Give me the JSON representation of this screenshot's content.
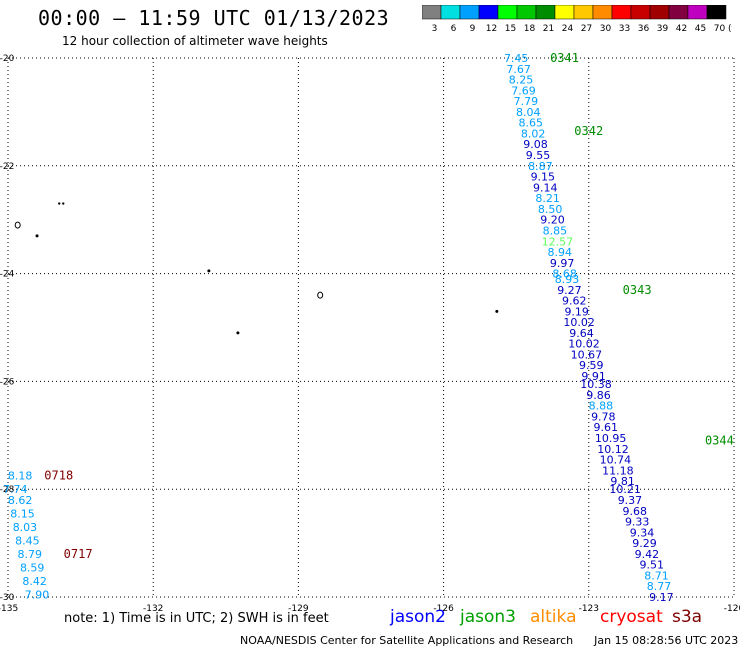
{
  "header": {
    "title": "00:00 – 11:59 UTC 01/13/2023",
    "subtitle": "12 hour collection of altimeter wave heights"
  },
  "color_scale": {
    "unit": "(ft)",
    "bins": [
      {
        "label": "3",
        "color": "#808080"
      },
      {
        "label": "6",
        "color": "#00e0e0"
      },
      {
        "label": "9",
        "color": "#00a0ff"
      },
      {
        "label": "12",
        "color": "#0000ff"
      },
      {
        "label": "15",
        "color": "#00ff00"
      },
      {
        "label": "18",
        "color": "#00c800"
      },
      {
        "label": "21",
        "color": "#008c00"
      },
      {
        "label": "24",
        "color": "#ffff00"
      },
      {
        "label": "27",
        "color": "#ffc800"
      },
      {
        "label": "30",
        "color": "#ff8c00"
      },
      {
        "label": "33",
        "color": "#ff0000"
      },
      {
        "label": "36",
        "color": "#c80000"
      },
      {
        "label": "39",
        "color": "#a00000"
      },
      {
        "label": "42",
        "color": "#800040"
      },
      {
        "label": "45",
        "color": "#c000c0"
      },
      {
        "label": "70",
        "color": "#000000"
      }
    ]
  },
  "map": {
    "lon_ticks": [
      "-135",
      "-132",
      "-129",
      "-126",
      "-123",
      "-120"
    ],
    "lat_ticks": [
      "-20",
      "-22",
      "-24",
      "-26",
      "-28",
      "-30"
    ],
    "pass_labels": [
      {
        "text": "0341",
        "lon": -123.8,
        "lat": -20.0,
        "color": "#008c00"
      },
      {
        "text": "0342",
        "lon": -123.3,
        "lat": -21.35,
        "color": "#008c00"
      },
      {
        "text": "0343",
        "lon": -122.3,
        "lat": -24.3,
        "color": "#008c00"
      },
      {
        "text": "0344",
        "lon": -120.6,
        "lat": -27.1,
        "color": "#008c00"
      },
      {
        "text": "0718",
        "lon": -134.25,
        "lat": -27.75,
        "color": "#800000"
      },
      {
        "text": "0717",
        "lon": -133.85,
        "lat": -29.2,
        "color": "#800000"
      }
    ],
    "tracks": [
      {
        "name": "jason3 pass",
        "points": [
          {
            "v": "7.45",
            "lon": -124.5,
            "lat": -20.0,
            "c": "#00a0ff"
          },
          {
            "v": "7.67",
            "lon": -124.45,
            "lat": -20.2,
            "c": "#00a0ff"
          },
          {
            "v": "8.25",
            "lon": -124.4,
            "lat": -20.4,
            "c": "#00a0ff"
          },
          {
            "v": "7.69",
            "lon": -124.35,
            "lat": -20.6,
            "c": "#00a0ff"
          },
          {
            "v": "7.79",
            "lon": -124.3,
            "lat": -20.8,
            "c": "#00a0ff"
          },
          {
            "v": "8.04",
            "lon": -124.25,
            "lat": -21.0,
            "c": "#00a0ff"
          },
          {
            "v": "8.65",
            "lon": -124.2,
            "lat": -21.2,
            "c": "#00a0ff"
          },
          {
            "v": "8.02",
            "lon": -124.15,
            "lat": -21.4,
            "c": "#00a0ff"
          },
          {
            "v": "9.08",
            "lon": -124.1,
            "lat": -21.6,
            "c": "#0000c0"
          },
          {
            "v": "9.55",
            "lon": -124.05,
            "lat": -21.8,
            "c": "#0000c0"
          },
          {
            "v": "8.87",
            "lon": -124.0,
            "lat": -22.0,
            "c": "#00a0ff"
          },
          {
            "v": "9.15",
            "lon": -123.95,
            "lat": -22.2,
            "c": "#0000c0"
          },
          {
            "v": "9.14",
            "lon": -123.9,
            "lat": -22.4,
            "c": "#0000c0"
          },
          {
            "v": "8.21",
            "lon": -123.85,
            "lat": -22.6,
            "c": "#00a0ff"
          },
          {
            "v": "8.50",
            "lon": -123.8,
            "lat": -22.8,
            "c": "#00a0ff"
          },
          {
            "v": "9.20",
            "lon": -123.75,
            "lat": -23.0,
            "c": "#0000c0"
          },
          {
            "v": "8.85",
            "lon": -123.7,
            "lat": -23.2,
            "c": "#00a0ff"
          },
          {
            "v": "12.57",
            "lon": -123.65,
            "lat": -23.4,
            "c": "#60ff60"
          },
          {
            "v": "8.94",
            "lon": -123.6,
            "lat": -23.6,
            "c": "#00a0ff"
          },
          {
            "v": "9.97",
            "lon": -123.55,
            "lat": -23.8,
            "c": "#0000c0"
          },
          {
            "v": "8.68",
            "lon": -123.5,
            "lat": -24.0,
            "c": "#00a0ff"
          },
          {
            "v": "8.93",
            "lon": -123.45,
            "lat": -24.1,
            "c": "#00a0ff"
          },
          {
            "v": "9.27",
            "lon": -123.4,
            "lat": -24.3,
            "c": "#0000c0"
          },
          {
            "v": "9.62",
            "lon": -123.3,
            "lat": -24.5,
            "c": "#0000c0"
          },
          {
            "v": "9.19",
            "lon": -123.25,
            "lat": -24.7,
            "c": "#0000c0"
          },
          {
            "v": "10.02",
            "lon": -123.2,
            "lat": -24.9,
            "c": "#0000c0"
          },
          {
            "v": "9.64",
            "lon": -123.15,
            "lat": -25.1,
            "c": "#0000c0"
          },
          {
            "v": "10.02",
            "lon": -123.1,
            "lat": -25.3,
            "c": "#0000c0"
          },
          {
            "v": "10.67",
            "lon": -123.05,
            "lat": -25.5,
            "c": "#0000c0"
          },
          {
            "v": "9.59",
            "lon": -122.95,
            "lat": -25.7,
            "c": "#0000c0"
          },
          {
            "v": "9.91",
            "lon": -122.9,
            "lat": -25.9,
            "c": "#0000c0"
          },
          {
            "v": "10.38",
            "lon": -122.85,
            "lat": -26.05,
            "c": "#0000c0"
          },
          {
            "v": "9.86",
            "lon": -122.8,
            "lat": -26.25,
            "c": "#0000c0"
          },
          {
            "v": "8.88",
            "lon": -122.75,
            "lat": -26.45,
            "c": "#00a0ff"
          },
          {
            "v": "9.78",
            "lon": -122.7,
            "lat": -26.65,
            "c": "#0000c0"
          },
          {
            "v": "9.61",
            "lon": -122.65,
            "lat": -26.85,
            "c": "#0000c0"
          },
          {
            "v": "10.95",
            "lon": -122.55,
            "lat": -27.05,
            "c": "#0000c0"
          },
          {
            "v": "10.12",
            "lon": -122.5,
            "lat": -27.25,
            "c": "#0000c0"
          },
          {
            "v": "10.74",
            "lon": -122.45,
            "lat": -27.45,
            "c": "#0000c0"
          },
          {
            "v": "11.18",
            "lon": -122.4,
            "lat": -27.65,
            "c": "#0000c0"
          },
          {
            "v": "9.81",
            "lon": -122.3,
            "lat": -27.85,
            "c": "#0000c0"
          },
          {
            "v": "10.21",
            "lon": -122.25,
            "lat": -28.0,
            "c": "#0000c0"
          },
          {
            "v": "9.37",
            "lon": -122.15,
            "lat": -28.2,
            "c": "#0000c0"
          },
          {
            "v": "9.68",
            "lon": -122.05,
            "lat": -28.4,
            "c": "#0000c0"
          },
          {
            "v": "9.33",
            "lon": -122.0,
            "lat": -28.6,
            "c": "#0000c0"
          },
          {
            "v": "9.34",
            "lon": -121.9,
            "lat": -28.8,
            "c": "#0000c0"
          },
          {
            "v": "9.29",
            "lon": -121.85,
            "lat": -29.0,
            "c": "#0000c0"
          },
          {
            "v": "9.42",
            "lon": -121.8,
            "lat": -29.2,
            "c": "#0000c0"
          },
          {
            "v": "9.51",
            "lon": -121.7,
            "lat": -29.4,
            "c": "#0000c0"
          },
          {
            "v": "8.71",
            "lon": -121.6,
            "lat": -29.6,
            "c": "#00a0ff"
          },
          {
            "v": "8.77",
            "lon": -121.55,
            "lat": -29.8,
            "c": "#00a0ff"
          },
          {
            "v": "9.17",
            "lon": -121.5,
            "lat": -30.0,
            "c": "#0000c0"
          }
        ]
      },
      {
        "name": "west pass",
        "points": [
          {
            "v": "8.18",
            "lon": -134.75,
            "lat": -27.75,
            "c": "#00a0ff"
          },
          {
            "v": "7.74",
            "lon": -134.85,
            "lat": -28.0,
            "c": "#00a0ff"
          },
          {
            "v": "8.62",
            "lon": -134.75,
            "lat": -28.2,
            "c": "#00a0ff"
          },
          {
            "v": "8.15",
            "lon": -134.7,
            "lat": -28.45,
            "c": "#00a0ff"
          },
          {
            "v": "8.03",
            "lon": -134.65,
            "lat": -28.7,
            "c": "#00a0ff"
          },
          {
            "v": "8.45",
            "lon": -134.6,
            "lat": -28.95,
            "c": "#00a0ff"
          },
          {
            "v": "8.79",
            "lon": -134.55,
            "lat": -29.2,
            "c": "#00a0ff"
          },
          {
            "v": "8.59",
            "lon": -134.5,
            "lat": -29.45,
            "c": "#00a0ff"
          },
          {
            "v": "8.42",
            "lon": -134.45,
            "lat": -29.7,
            "c": "#00a0ff"
          },
          {
            "v": "7.90",
            "lon": -134.4,
            "lat": -29.95,
            "c": "#00a0ff"
          }
        ]
      }
    ],
    "islands": [
      {
        "lon": -133.9,
        "lat": -22.7,
        "type": "dot-pair"
      },
      {
        "lon": -134.8,
        "lat": -23.1,
        "type": "outline"
      },
      {
        "lon": -134.4,
        "lat": -23.3,
        "type": "dot"
      },
      {
        "lon": -130.85,
        "lat": -23.95,
        "type": "dot"
      },
      {
        "lon": -130.25,
        "lat": -25.1,
        "type": "dot"
      },
      {
        "lon": -128.55,
        "lat": -24.4,
        "type": "outline"
      },
      {
        "lon": -124.9,
        "lat": -24.7,
        "type": "dot"
      }
    ]
  },
  "note": "note: 1) Time is in UTC; 2) SWH is in feet",
  "satellites": [
    {
      "name": "jason2",
      "color": "#0000ff"
    },
    {
      "name": "jason3",
      "color": "#00a000"
    },
    {
      "name": "altika",
      "color": "#ff8c00"
    },
    {
      "name": "cryosat",
      "color": "#ff0000"
    },
    {
      "name": "s3a",
      "color": "#800000"
    }
  ],
  "footer": {
    "org": "NOAA/NESDIS Center for Satellite Applications and Research",
    "timestamp": "Jan 15 08:28:56 UTC 2023"
  }
}
